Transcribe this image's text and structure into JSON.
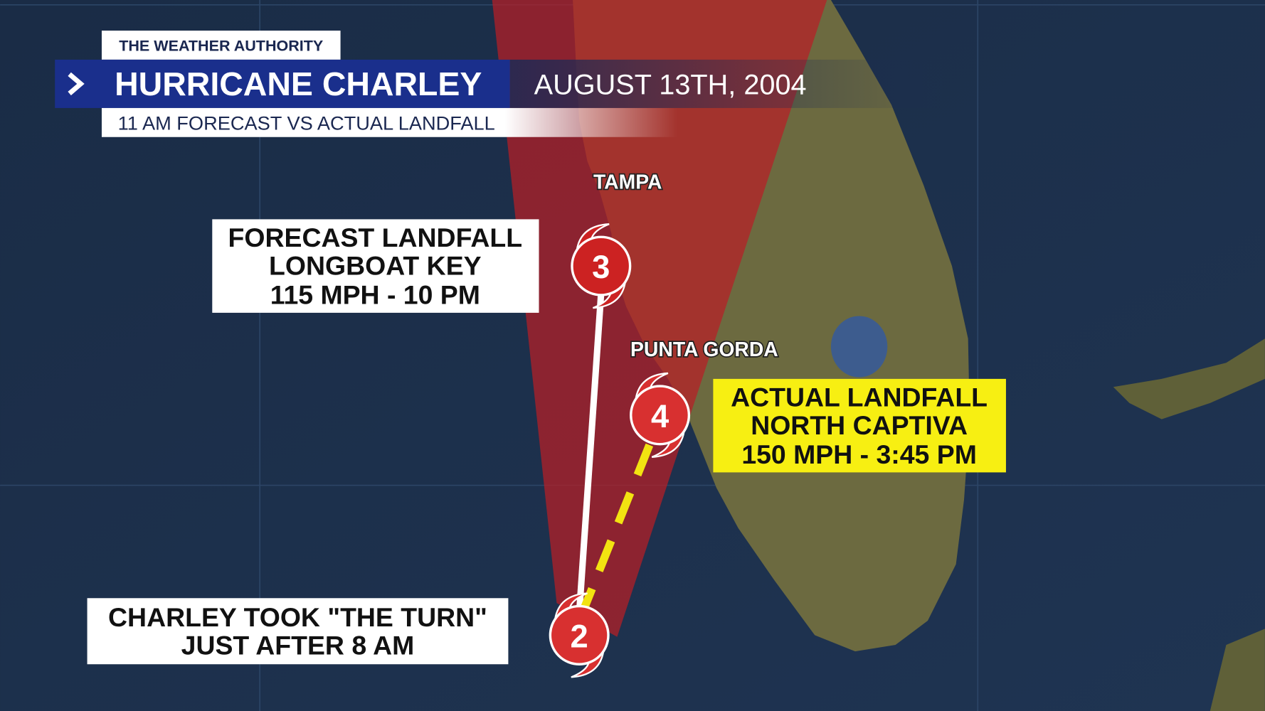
{
  "header": {
    "brand": "THE WEATHER AUTHORITY",
    "title": "HURRICANE CHARLEY",
    "date": "AUGUST 13TH, 2004",
    "subtitle": "11 AM FORECAST VS ACTUAL LANDFALL"
  },
  "cities": [
    {
      "label": "TAMPA"
    },
    {
      "label": "PUNTA GORDA"
    }
  ],
  "callouts": [
    {
      "lines": [
        "FORECAST LANDFALL",
        "LONGBOAT KEY",
        "115 MPH - 10 PM"
      ]
    },
    {
      "lines": [
        "ACTUAL LANDFALL",
        "NORTH CAPTIVA",
        "150 MPH - 3:45 PM"
      ]
    },
    {
      "lines": [
        "CHARLEY TOOK \"THE TURN\"",
        "JUST AFTER 8 AM"
      ]
    }
  ],
  "storms": [
    {
      "category": 3
    },
    {
      "category": 4
    },
    {
      "category": 2
    }
  ]
}
